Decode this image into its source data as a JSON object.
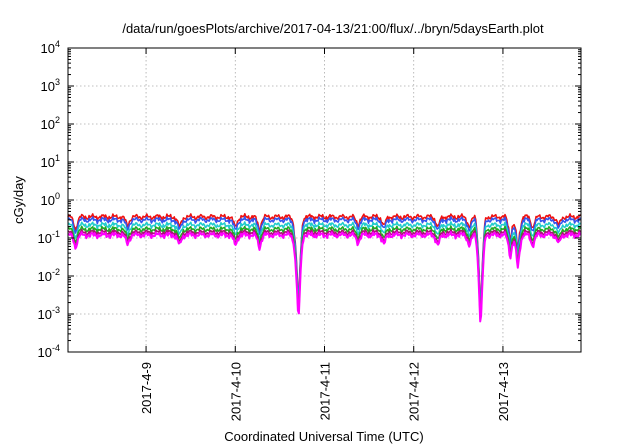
{
  "chart_data": {
    "type": "line",
    "title": "/data/run/goesPlots/archive/2017-04-13/21:00/flux/../bryn/5daysEarth.plot",
    "xlabel": "Coordinated Universal Time (UTC)",
    "ylabel": "cGy/day",
    "y_scale": "log",
    "ylim": [
      0.0001,
      10000
    ],
    "y_ticks": [
      {
        "value": 0.0001,
        "label": "10",
        "exp": "-4"
      },
      {
        "value": 0.001,
        "label": "10",
        "exp": "-3"
      },
      {
        "value": 0.01,
        "label": "10",
        "exp": "-2"
      },
      {
        "value": 0.1,
        "label": "10",
        "exp": "-1"
      },
      {
        "value": 1,
        "label": "10",
        "exp": "0"
      },
      {
        "value": 10,
        "label": "10",
        "exp": "1"
      },
      {
        "value": 100,
        "label": "10",
        "exp": "2"
      },
      {
        "value": 1000,
        "label": "10",
        "exp": "3"
      },
      {
        "value": 10000,
        "label": "10",
        "exp": "4"
      }
    ],
    "xlim": [
      "2017-04-08 03:00",
      "2017-04-13 21:00"
    ],
    "x_ticks": [
      {
        "value": "2017-04-09 00:00",
        "label": "2017-4-9"
      },
      {
        "value": "2017-04-10 00:00",
        "label": "2017-4-10"
      },
      {
        "value": "2017-04-11 00:00",
        "label": "2017-4-11"
      },
      {
        "value": "2017-04-12 00:00",
        "label": "2017-4-12"
      },
      {
        "value": "2017-04-13 00:00",
        "label": "2017-4-13"
      }
    ],
    "grid": true,
    "legend": "none",
    "series": [
      {
        "color": "#ee1111",
        "base": 0.36
      },
      {
        "color": "#3355ee",
        "base": 0.3
      },
      {
        "color": "#22cccc",
        "base": 0.22
      },
      {
        "color": "#22aa22",
        "base": 0.17
      },
      {
        "color": "#aa1177",
        "base": 0.14
      },
      {
        "color": "#ff00ff",
        "base": 0.12
      }
    ],
    "dips": [
      {
        "x": "2017-04-08 05:00",
        "factor": 0.45
      },
      {
        "x": "2017-04-08 19:00",
        "factor": 0.55
      },
      {
        "x": "2017-04-09 09:00",
        "factor": 0.5
      },
      {
        "x": "2017-04-10 00:00",
        "factor": 0.5
      },
      {
        "x": "2017-04-10 06:30",
        "factor": 0.45
      },
      {
        "x": "2017-04-10 16:00",
        "factor": 0.6
      },
      {
        "x": "2017-04-10 17:00",
        "factor": 0.004
      },
      {
        "x": "2017-04-11 09:00",
        "factor": 0.6
      },
      {
        "x": "2017-04-11 16:00",
        "factor": 0.55
      },
      {
        "x": "2017-04-12 06:30",
        "factor": 0.5
      },
      {
        "x": "2017-04-12 15:00",
        "factor": 0.5
      },
      {
        "x": "2017-04-12 18:00",
        "factor": 0.0025
      },
      {
        "x": "2017-04-13 02:00",
        "factor": 0.25
      },
      {
        "x": "2017-04-13 04:00",
        "factor": 0.12
      },
      {
        "x": "2017-04-13 08:00",
        "factor": 0.5
      },
      {
        "x": "2017-04-13 15:00",
        "factor": 0.55
      }
    ]
  }
}
